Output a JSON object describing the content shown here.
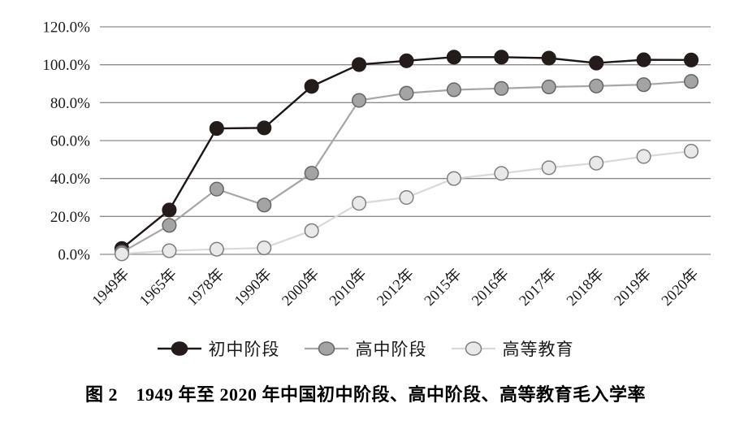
{
  "figure": {
    "caption": "图 2　1949 年至 2020 年中国初中阶段、高中阶段、高等教育毛入学率"
  },
  "colors": {
    "gridline": "#8c8c8c",
    "axis_text": "#1a1a1a",
    "background": "#ffffff"
  },
  "chart_data": {
    "type": "line",
    "title": "",
    "xlabel": "",
    "ylabel": "",
    "ylim": [
      0,
      120
    ],
    "y_tick_step": 20,
    "grid": true,
    "legend_position": "bottom",
    "categories": [
      "1949年",
      "1965年",
      "1978年",
      "1990年",
      "2000年",
      "2010年",
      "2012年",
      "2015年",
      "2016年",
      "2017年",
      "2018年",
      "2019年",
      "2020年"
    ],
    "y_ticks": [
      "0.0%",
      "20.0%",
      "40.0%",
      "60.0%",
      "80.0%",
      "100.0%",
      "120.0%"
    ],
    "series": [
      {
        "name": "初中阶段",
        "key": "junior-middle-school",
        "line_color": "#1c1616",
        "line_width": 2.4,
        "marker_fill": "#241b1b",
        "marker_stroke": "#241b1b",
        "values": [
          3.1,
          23.4,
          66.4,
          66.7,
          88.6,
          100.1,
          102.1,
          104.0,
          104.0,
          103.5,
          100.9,
          102.6,
          102.5
        ]
      },
      {
        "name": "高中阶段",
        "key": "senior-high-school",
        "line_color": "#a6a6a6",
        "line_width": 2.2,
        "marker_fill": "#a4a4a5",
        "marker_stroke": "#666666",
        "values": [
          1.1,
          15.3,
          34.4,
          26.0,
          42.8,
          81.2,
          85.0,
          86.8,
          87.5,
          88.3,
          88.8,
          89.5,
          91.2
        ]
      },
      {
        "name": "高等教育",
        "key": "higher-education",
        "line_color": "#d9d9d9",
        "line_width": 2.2,
        "marker_fill": "#e9e9ea",
        "marker_stroke": "#7f7f7f",
        "values": [
          0.26,
          1.9,
          2.7,
          3.4,
          12.5,
          26.9,
          30.0,
          40.0,
          42.7,
          45.7,
          48.1,
          51.6,
          54.4
        ]
      }
    ]
  }
}
